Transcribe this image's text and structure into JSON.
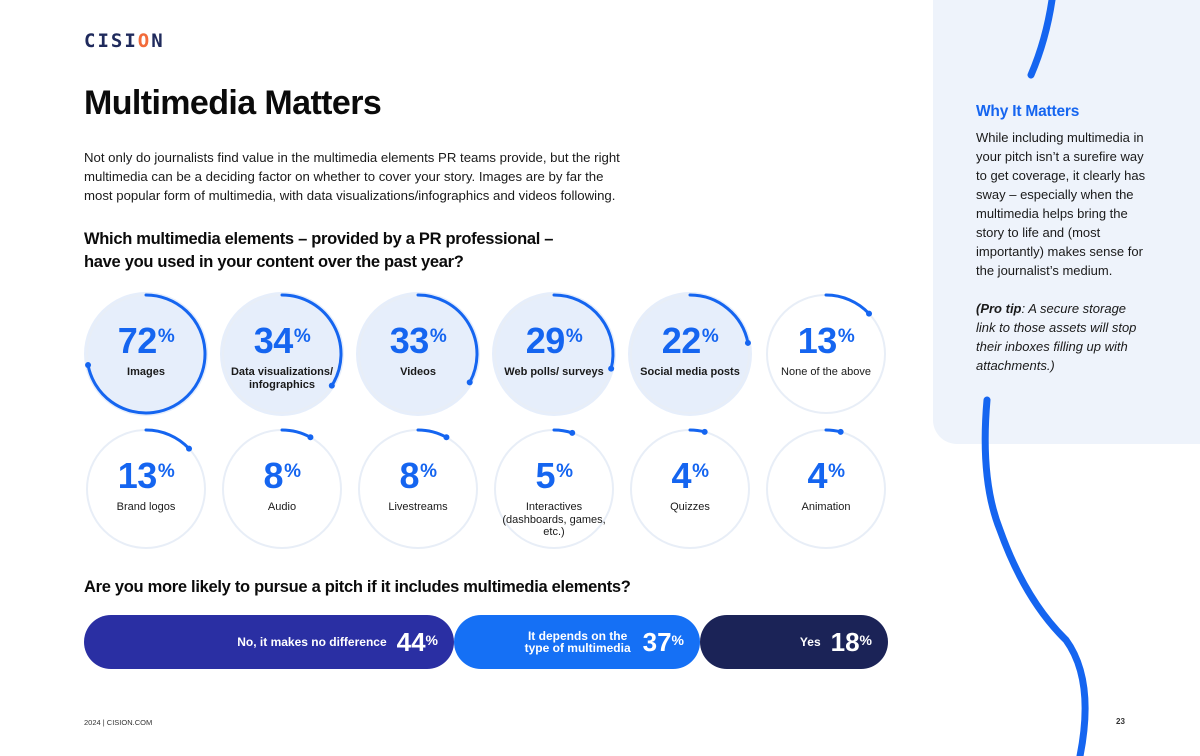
{
  "header": {
    "logo_main": "CISI",
    "logo_o": "O",
    "logo_end": "N"
  },
  "title": "Multimedia Matters",
  "intro": "Not only do journalists find value in the multimedia elements PR teams provide, but the right multimedia can be a deciding factor on whether to cover your story. Images are by far the most popular form of multimedia, with data visualizations/infographics and videos following.",
  "question1": "Which multimedia elements – provided by a PR professional – have you used in your content over the past year?",
  "pct_symbol": "%",
  "elements": [
    {
      "value": 72,
      "label": "Images"
    },
    {
      "value": 34,
      "label": "Data visualizations/ infographics"
    },
    {
      "value": 33,
      "label": "Videos"
    },
    {
      "value": 29,
      "label": "Web polls/ surveys"
    },
    {
      "value": 22,
      "label": "Social media posts"
    },
    {
      "value": 13,
      "label": "None of the above"
    },
    {
      "value": 13,
      "label": "Brand logos"
    },
    {
      "value": 8,
      "label": "Audio"
    },
    {
      "value": 8,
      "label": "Livestreams"
    },
    {
      "value": 5,
      "label": "Interactives (dashboards, games, etc.)"
    },
    {
      "value": 4,
      "label": "Quizzes"
    },
    {
      "value": 4,
      "label": "Animation"
    }
  ],
  "question2": "Are you more likely to pursue a pitch if it includes multimedia elements?",
  "pitch": [
    {
      "label": "No, it makes no difference",
      "value": 44,
      "color": "#2a2fa3"
    },
    {
      "label": "It depends on the type of multimedia",
      "value": 37,
      "color": "#1570f5"
    },
    {
      "label": "Yes",
      "value": 18,
      "color": "#1b2357"
    }
  ],
  "sidebar": {
    "heading": "Why It Matters",
    "body": "While including multimedia in your pitch isn’t a surefire way to get coverage, it clearly has sway – especially when the multimedia helps bring the story to life and (most importantly) makes sense for the journalist’s medium.",
    "tip_bold": "(Pro tip",
    "tip_rest": ": A secure storage link to those assets will stop their inboxes filling up with attachments.)"
  },
  "footer": {
    "left": "2024 | CISION.COM",
    "page": "23"
  },
  "colors": {
    "accent": "#1565f0",
    "top_fill": "#e6eefb",
    "ring_track": "#e8eef7"
  }
}
